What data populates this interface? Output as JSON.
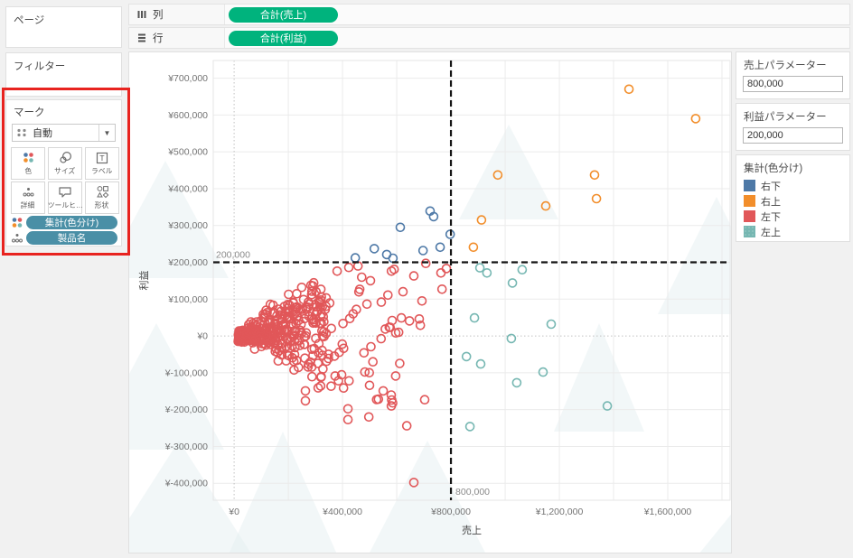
{
  "left_panel": {
    "pages_label": "ページ",
    "filter_label": "フィルター",
    "marks": {
      "title": "マーク",
      "mark_type": "自動",
      "buttons": [
        "色",
        "サイズ",
        "ラベル",
        "詳細",
        "ツールヒ…",
        "形状"
      ],
      "pills": [
        {
          "label": "集計(色分け)",
          "icon": "color-icon"
        },
        {
          "label": "製品名",
          "icon": "detail-icon"
        }
      ],
      "pill_color": "#4a8fa6"
    }
  },
  "shelves": {
    "columns_label": "列",
    "rows_label": "行",
    "columns_pill": "合計(売上)",
    "rows_pill": "合計(利益)",
    "pill_color": "#00b37d"
  },
  "right_panel": {
    "sales_param": {
      "title": "売上パラメーター",
      "value": "800,000"
    },
    "profit_param": {
      "title": "利益パラメーター",
      "value": "200,000"
    },
    "legend": {
      "title": "集計(色分け)",
      "items": [
        {
          "label": "右下",
          "color": "#4e79a7"
        },
        {
          "label": "右上",
          "color": "#f28e2b"
        },
        {
          "label": "左下",
          "color": "#e15759"
        },
        {
          "label": "左上",
          "color": "#76b7b2"
        }
      ]
    }
  },
  "chart_data": {
    "type": "scatter",
    "xlabel": "売上",
    "ylabel": "利益",
    "x_domain": [
      -77000,
      1830000
    ],
    "y_domain": [
      -446000,
      748000
    ],
    "grid_step_x": 200000,
    "grid_step_y": 100000,
    "x_ticks": [
      {
        "v": 0,
        "label": "¥0"
      },
      {
        "v": 400000,
        "label": "¥400,000"
      },
      {
        "v": 800000,
        "label": "¥800,000"
      },
      {
        "v": 1200000,
        "label": "¥1,200,000"
      },
      {
        "v": 1600000,
        "label": "¥1,600,000"
      }
    ],
    "y_ticks": [
      {
        "v": 700000,
        "label": "¥700,000"
      },
      {
        "v": 600000,
        "label": "¥600,000"
      },
      {
        "v": 500000,
        "label": "¥500,000"
      },
      {
        "v": 400000,
        "label": "¥400,000"
      },
      {
        "v": 300000,
        "label": "¥300,000"
      },
      {
        "v": 200000,
        "label": "¥200,000"
      },
      {
        "v": 100000,
        "label": "¥100,000"
      },
      {
        "v": 0,
        "label": "¥0"
      },
      {
        "v": -100000,
        "label": "¥-100,000"
      },
      {
        "v": -200000,
        "label": "¥-200,000"
      },
      {
        "v": -300000,
        "label": "¥-300,000"
      },
      {
        "v": -400000,
        "label": "¥-400,000"
      }
    ],
    "reference_lines": [
      {
        "axis": "y",
        "value": 200000,
        "label": "200,000"
      },
      {
        "axis": "x",
        "value": 800000,
        "label": "800,000"
      }
    ],
    "series": [
      {
        "name": "左下",
        "color": "#e15759",
        "points": [
          [
            263000,
            -149000
          ],
          [
            310000,
            -141000
          ],
          [
            263000,
            -176000
          ],
          [
            420000,
            -198000
          ],
          [
            420000,
            -227000
          ],
          [
            497000,
            -220000
          ],
          [
            550000,
            -149000
          ],
          [
            580000,
            -190000
          ],
          [
            637000,
            -244000
          ],
          [
            703000,
            -173000
          ],
          [
            663000,
            -398000
          ],
          [
            663000,
            163000
          ],
          [
            707000,
            197000
          ],
          [
            693000,
            95000
          ],
          [
            623000,
            120000
          ],
          [
            617000,
            49000
          ],
          [
            647000,
            41000
          ],
          [
            683000,
            46000
          ],
          [
            687000,
            29000
          ],
          [
            607000,
            10000
          ],
          [
            767000,
            127000
          ],
          [
            763000,
            171000
          ],
          [
            783000,
            183000
          ],
          [
            380000,
            176000
          ],
          [
            423000,
            186000
          ],
          [
            457000,
            190000
          ],
          [
            503000,
            150000
          ],
          [
            543000,
            92000
          ]
        ],
        "clusters": [
          {
            "kind": "wedge",
            "count": 300,
            "seed": 13,
            "s_min": 15000,
            "s_span": 325000,
            "s_exp": 1.45,
            "upper_slope": 0.58,
            "lower_slope": -0.4,
            "jitter": 15000
          },
          {
            "kind": "box",
            "count": 75,
            "seed": 47,
            "s_min": 130000,
            "s_span": 500000,
            "p_min": -195000,
            "p_span": 385000
          }
        ]
      },
      {
        "name": "左上",
        "color": "#76b7b2",
        "points": [
          [
            907000,
            185000
          ],
          [
            933000,
            171000
          ],
          [
            1063000,
            180000
          ],
          [
            1027000,
            144000
          ],
          [
            887000,
            49000
          ],
          [
            1170000,
            32000
          ],
          [
            1023000,
            -7000
          ],
          [
            857000,
            -56000
          ],
          [
            910000,
            -76000
          ],
          [
            1140000,
            -98000
          ],
          [
            1043000,
            -127000
          ],
          [
            1377000,
            -190000
          ],
          [
            870000,
            -246000
          ]
        ]
      },
      {
        "name": "右下",
        "color": "#4e79a7",
        "points": [
          [
            447000,
            212000
          ],
          [
            517000,
            237000
          ],
          [
            563000,
            221000
          ],
          [
            586000,
            211000
          ],
          [
            613000,
            295000
          ],
          [
            697000,
            232000
          ],
          [
            723000,
            339000
          ],
          [
            736000,
            324000
          ],
          [
            760000,
            241000
          ],
          [
            797000,
            276000
          ]
        ]
      },
      {
        "name": "右上",
        "color": "#f28e2b",
        "points": [
          [
            883000,
            241000
          ],
          [
            913000,
            315000
          ],
          [
            973000,
            437000
          ],
          [
            1150000,
            353000
          ],
          [
            1330000,
            437000
          ],
          [
            1337000,
            373000
          ],
          [
            1457000,
            670000
          ],
          [
            1703000,
            590000
          ]
        ]
      }
    ]
  }
}
